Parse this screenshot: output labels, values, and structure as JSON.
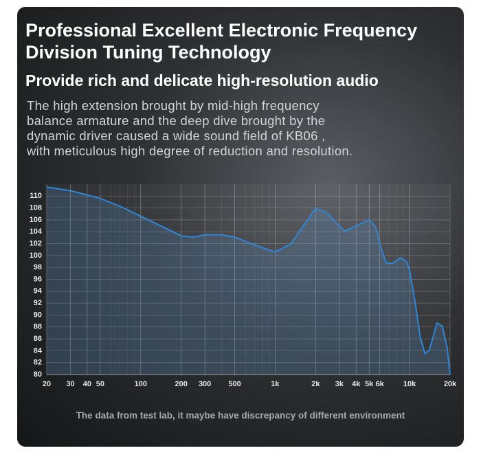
{
  "chart_data": {
    "type": "line",
    "title": [
      "Professional Excellent Electronic Frequency",
      "Division Tuning Technology"
    ],
    "subtitle": "Provide rich and delicate high-resolution audio",
    "description": [
      "The high extension brought by mid-high frequency",
      "balance armature and the deep dive brought by the",
      "dynamic driver caused a wide sound field of KB06 ,",
      "with meticulous high degree of reduction and resolution."
    ],
    "note": "The data from test lab, it maybe have discrepancy of different environment",
    "x_scale": "log",
    "grid": true,
    "xlim": [
      20,
      20000
    ],
    "ylim": [
      80,
      112
    ],
    "xticks": [
      20,
      30,
      40,
      50,
      100,
      200,
      300,
      500,
      {
        "value": 1000,
        "label": "1k"
      },
      {
        "value": 2000,
        "label": "2k"
      },
      {
        "value": 3000,
        "label": "3k"
      },
      {
        "value": 4000,
        "label": "4k"
      },
      {
        "value": 5000,
        "label": "5k"
      },
      {
        "value": 6000,
        "label": "6k"
      },
      {
        "value": 10000,
        "label": "10k"
      },
      {
        "value": 20000,
        "label": "20k"
      }
    ],
    "yticks": [
      80,
      82,
      84,
      86,
      88,
      90,
      92,
      94,
      96,
      98,
      100,
      102,
      104,
      106,
      108,
      110
    ],
    "x": [
      20,
      30,
      40,
      50,
      70,
      100,
      150,
      200,
      250,
      300,
      400,
      500,
      700,
      1000,
      1300,
      1600,
      2000,
      2400,
      2900,
      3300,
      4000,
      5000,
      5600,
      6000,
      6700,
      7500,
      8500,
      9500,
      10000,
      11000,
      12000,
      13000,
      14000,
      16000,
      17500,
      19000,
      20000
    ],
    "series": [
      {
        "color": "#2f86d8",
        "values": [
          111.5,
          110.9,
          110.2,
          109.6,
          108.3,
          106.6,
          104.7,
          103.3,
          103.1,
          103.5,
          103.5,
          103.1,
          101.8,
          100.6,
          101.9,
          104.8,
          107.9,
          107.3,
          105.3,
          104.1,
          105,
          106,
          104.8,
          101.9,
          98.7,
          98.7,
          99.6,
          99,
          97.5,
          92.1,
          86.3,
          83.5,
          84.1,
          88.7,
          88.1,
          84.6,
          80
        ]
      }
    ]
  }
}
